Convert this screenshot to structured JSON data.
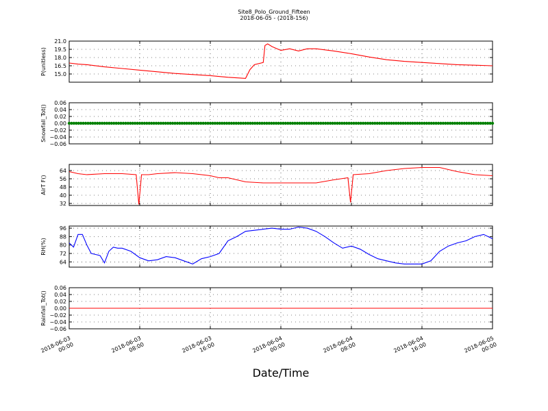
{
  "figure": {
    "title_line1": "Site8_Polo_Ground_Fifteen",
    "title_line2": "2018-06-05 - (2018-156)",
    "xlabel": "Date/Time",
    "xtick_labels": [
      [
        "2018-06-03",
        "00:00"
      ],
      [
        "2018-06-03",
        "08:00"
      ],
      [
        "2018-06-03",
        "16:00"
      ],
      [
        "2018-06-04",
        "00:00"
      ],
      [
        "2018-06-04",
        "08:00"
      ],
      [
        "2018-06-04",
        "16:00"
      ],
      [
        "2018-06-05",
        "00:00"
      ]
    ]
  },
  "chart_data": [
    {
      "type": "line",
      "ylabel": "P(unitless)",
      "ylim": [
        13.5,
        21.0
      ],
      "yticks": [
        15.0,
        16.5,
        18.0,
        19.5,
        21.0
      ],
      "ytick_labels": [
        "15.0",
        "16.5",
        "18.0",
        "19.5",
        "21.0"
      ],
      "color": "#ff0000",
      "grid": true,
      "xlim_hours": [
        0,
        48
      ],
      "x_hours": [
        0,
        1,
        2,
        4,
        6,
        8,
        10,
        12,
        14,
        16,
        18,
        20,
        20.5,
        21,
        22,
        22.2,
        22.5,
        23,
        24,
        25,
        26,
        27,
        28,
        30,
        32,
        34,
        36,
        38,
        40,
        42,
        44,
        46,
        48
      ],
      "y": [
        17.0,
        16.8,
        16.7,
        16.3,
        16.0,
        15.7,
        15.4,
        15.1,
        14.9,
        14.7,
        14.4,
        14.2,
        15.8,
        16.7,
        17.1,
        20.2,
        20.5,
        20.0,
        19.3,
        19.6,
        19.2,
        19.6,
        19.6,
        19.2,
        18.7,
        18.1,
        17.6,
        17.3,
        17.1,
        16.9,
        16.7,
        16.6,
        16.5
      ]
    },
    {
      "type": "scatter",
      "ylabel": "Snowfall_Tot()",
      "ylim": [
        -0.06,
        0.06
      ],
      "yticks": [
        -0.06,
        -0.04,
        -0.02,
        0.0,
        0.02,
        0.04,
        0.06
      ],
      "ytick_labels": [
        "−0.06",
        "−0.04",
        "−0.02",
        "0.00",
        "0.02",
        "0.04",
        "0.06"
      ],
      "color": "#008000",
      "grid": true,
      "xlim_hours": [
        0,
        48
      ],
      "x_start": 0,
      "x_end": 48,
      "constant_value": 0.0
    },
    {
      "type": "line",
      "ylabel": "AirT F()",
      "ylim": [
        30,
        70
      ],
      "yticks": [
        32,
        40,
        48,
        56,
        64
      ],
      "ytick_labels": [
        "32",
        "40",
        "48",
        "56",
        "64"
      ],
      "color": "#ff0000",
      "grid": true,
      "xlim_hours": [
        0,
        48
      ],
      "x_hours": [
        0,
        1,
        2,
        4,
        6,
        7.6,
        7.9,
        8.2,
        9,
        10,
        12,
        14,
        16,
        17,
        18,
        20,
        22,
        24,
        26,
        28,
        30,
        31.6,
        31.9,
        32.2,
        34,
        36,
        38,
        40,
        42,
        44,
        46,
        48
      ],
      "y": [
        63,
        61,
        60,
        61,
        61,
        60,
        31,
        60,
        60,
        61,
        62,
        61,
        59,
        57,
        57,
        53,
        52,
        52,
        52,
        52,
        55,
        57,
        33,
        60,
        61,
        64,
        66,
        67,
        67,
        63,
        60,
        59
      ]
    },
    {
      "type": "line",
      "ylabel": "RH(%)",
      "ylim": [
        59,
        98
      ],
      "yticks": [
        64,
        72,
        80,
        88,
        96
      ],
      "ytick_labels": [
        "64",
        "72",
        "80",
        "88",
        "96"
      ],
      "color": "#0000ff",
      "grid": true,
      "xlim_hours": [
        0,
        48
      ],
      "x_hours": [
        0,
        0.5,
        1,
        1.5,
        2,
        2.5,
        3,
        3.5,
        4,
        4.5,
        5,
        5.5,
        6,
        7,
        8,
        9,
        10,
        11,
        12,
        13,
        14,
        15,
        16,
        17,
        18,
        19,
        20,
        21,
        22,
        23,
        24,
        25,
        26,
        27,
        28,
        29,
        30,
        31,
        32,
        33,
        34,
        35,
        36,
        37,
        38,
        39,
        40,
        41,
        42,
        43,
        44,
        45,
        46,
        47,
        48
      ],
      "y": [
        82,
        78,
        90,
        90,
        80,
        72,
        71,
        70,
        63,
        74,
        78,
        77,
        77,
        74,
        68,
        65,
        66,
        69,
        68,
        65,
        62,
        67,
        69,
        72,
        84,
        88,
        93,
        94,
        95,
        96,
        95,
        95,
        97,
        96,
        93,
        88,
        82,
        77,
        79,
        76,
        71,
        67,
        65,
        63,
        62,
        62,
        62,
        65,
        74,
        79,
        82,
        84,
        88,
        90,
        86
      ]
    },
    {
      "type": "line",
      "ylabel": "Rainfall_Tot()",
      "ylim": [
        -0.06,
        0.06
      ],
      "yticks": [
        -0.06,
        -0.04,
        -0.02,
        0.0,
        0.02,
        0.04,
        0.06
      ],
      "ytick_labels": [
        "−0.06",
        "−0.04",
        "−0.02",
        "0.00",
        "0.02",
        "0.04",
        "0.06"
      ],
      "color": "#ff0000",
      "grid": true,
      "xlim_hours": [
        0,
        48
      ],
      "x_hours": [
        0,
        48
      ],
      "y": [
        0.0,
        0.0
      ]
    }
  ]
}
